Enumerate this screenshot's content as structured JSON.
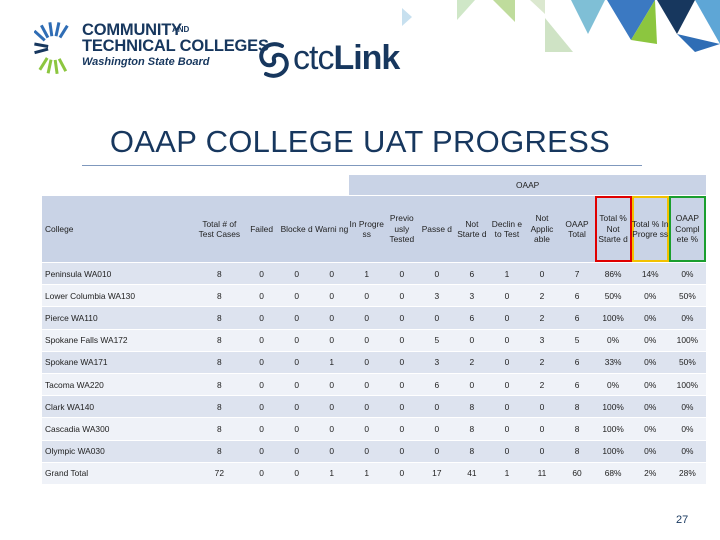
{
  "logo": {
    "line1": "COMMUNITY",
    "line2_main": "TECHNICAL COLLEGES",
    "line2_small": "AND",
    "line3": "Washington State Board"
  },
  "ctclink": {
    "prefix": "ctc",
    "suffix": "Link"
  },
  "title": "OAAP COLLEGE UAT PROGRESS",
  "table": {
    "group_header": "OAAP",
    "college_header": "College",
    "columns": [
      "Total # of Test Cases",
      "Failed",
      "Blocke d",
      "Warni ng",
      "In Progre ss",
      "Previo usly Tested",
      "Passe d",
      "Not Starte d",
      "Declin e to Test",
      "Not Applic able",
      "OAAP Total",
      "Total % Not Starte d",
      "Total % In Progre ss",
      "OAAP Compl ete %"
    ],
    "rows": [
      {
        "college": "Peninsula WA010",
        "values": [
          "8",
          "0",
          "0",
          "0",
          "1",
          "0",
          "0",
          "6",
          "1",
          "0",
          "7",
          "86%",
          "14%",
          "0%"
        ]
      },
      {
        "college": "Lower Columbia WA130",
        "values": [
          "8",
          "0",
          "0",
          "0",
          "0",
          "0",
          "3",
          "3",
          "0",
          "2",
          "6",
          "50%",
          "0%",
          "50%"
        ]
      },
      {
        "college": "Pierce WA110",
        "values": [
          "8",
          "0",
          "0",
          "0",
          "0",
          "0",
          "0",
          "6",
          "0",
          "2",
          "6",
          "100%",
          "0%",
          "0%"
        ]
      },
      {
        "college": "Spokane Falls WA172",
        "values": [
          "8",
          "0",
          "0",
          "0",
          "0",
          "0",
          "5",
          "0",
          "0",
          "3",
          "5",
          "0%",
          "0%",
          "100%"
        ]
      },
      {
        "college": "Spokane WA171",
        "values": [
          "8",
          "0",
          "0",
          "1",
          "0",
          "0",
          "3",
          "2",
          "0",
          "2",
          "6",
          "33%",
          "0%",
          "50%"
        ]
      },
      {
        "college": "Tacoma WA220",
        "values": [
          "8",
          "0",
          "0",
          "0",
          "0",
          "0",
          "6",
          "0",
          "0",
          "2",
          "6",
          "0%",
          "0%",
          "100%"
        ]
      },
      {
        "college": "Clark WA140",
        "values": [
          "8",
          "0",
          "0",
          "0",
          "0",
          "0",
          "0",
          "8",
          "0",
          "0",
          "8",
          "100%",
          "0%",
          "0%"
        ]
      },
      {
        "college": "Cascadia WA300",
        "values": [
          "8",
          "0",
          "0",
          "0",
          "0",
          "0",
          "0",
          "8",
          "0",
          "0",
          "8",
          "100%",
          "0%",
          "0%"
        ]
      },
      {
        "college": "Olympic WA030",
        "values": [
          "8",
          "0",
          "0",
          "0",
          "0",
          "0",
          "0",
          "8",
          "0",
          "0",
          "8",
          "100%",
          "0%",
          "0%"
        ]
      },
      {
        "college": "Grand Total",
        "values": [
          "72",
          "0",
          "0",
          "1",
          "1",
          "0",
          "17",
          "41",
          "1",
          "11",
          "60",
          "68%",
          "2%",
          "28%"
        ]
      }
    ]
  },
  "page_number": "27",
  "colors": {
    "navy": "#17375e",
    "header_fill": "#c9d3e6",
    "row_odd": "#dde3ef",
    "row_even": "#eff2f8",
    "highlight_not_started": "#e00000",
    "highlight_in_progress": "#f2c200",
    "highlight_complete": "#1a9e2e"
  }
}
